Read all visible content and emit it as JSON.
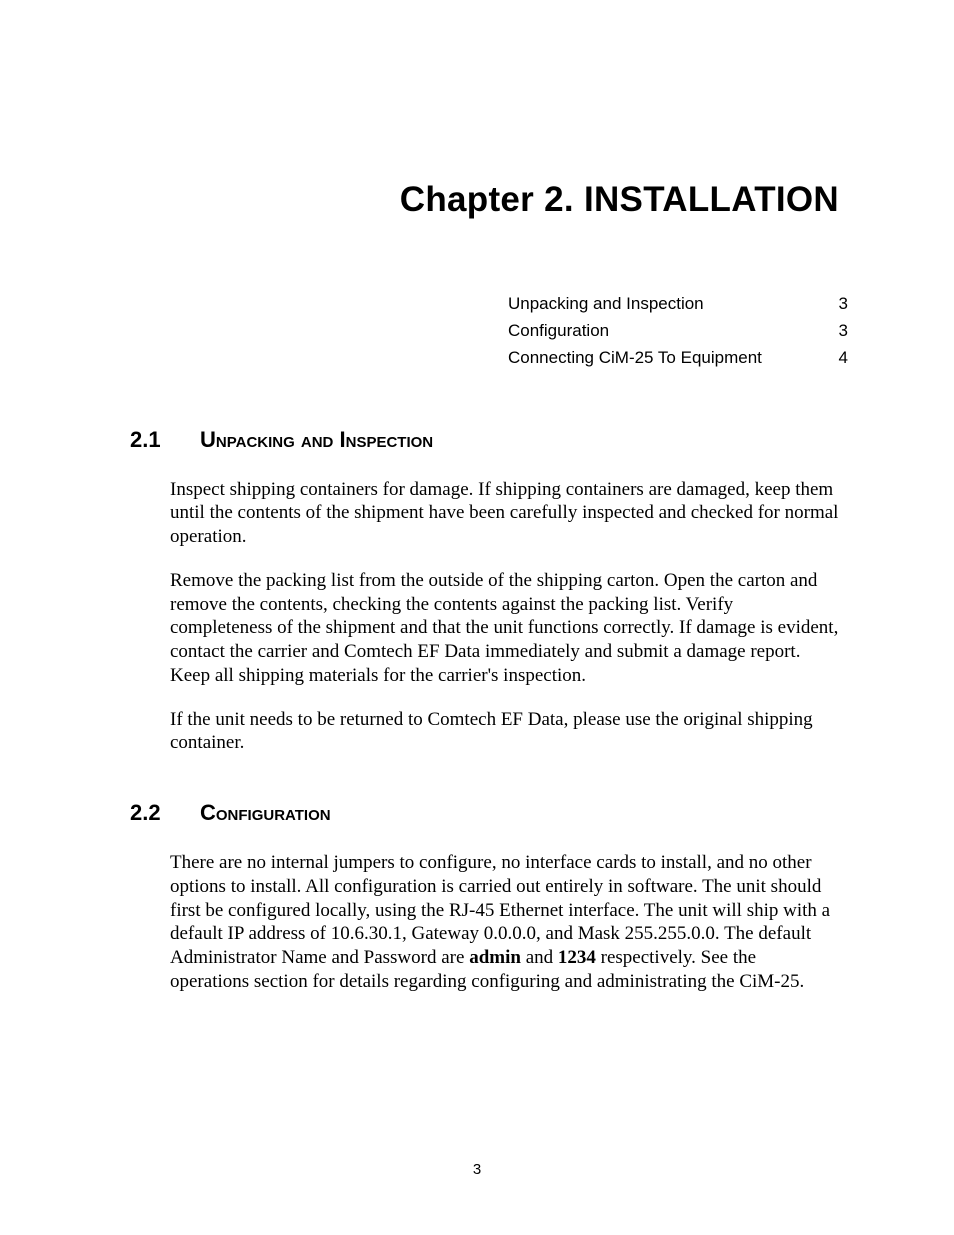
{
  "chapter": {
    "label": "Chapter 2.",
    "title": "INSTALLATION"
  },
  "toc": [
    {
      "label": "Unpacking and Inspection",
      "page": "3"
    },
    {
      "label": "Configuration",
      "page": "3"
    },
    {
      "label": "Connecting CiM-25 To Equipment",
      "page": "4"
    }
  ],
  "sections": [
    {
      "number": "2.1",
      "title": "Unpacking and Inspection",
      "paragraphs": [
        "Inspect shipping containers for damage.  If shipping containers are damaged, keep them until the contents of the shipment have been carefully inspected and checked for normal operation.",
        "Remove the packing list from the outside of the shipping carton. Open the carton and remove the contents, checking the contents against the packing list. Verify completeness of the shipment and that the unit functions correctly. If damage is evident, contact the carrier and Comtech EF Data immediately and submit a damage report. Keep all shipping materials for the carrier's inspection.",
        "If the unit needs to be returned to Comtech EF Data, please use the original shipping container."
      ]
    },
    {
      "number": "2.2",
      "title": "Configuration",
      "paragraphs": [
        "There are no internal jumpers to configure, no interface cards to install, and no other options to install. All configuration is carried out entirely in software. The unit should first be configured locally, using the RJ-45 Ethernet interface. The unit will ship with a default IP address of 10.6.30.1, Gateway 0.0.0.0, and Mask 255.255.0.0.  The default Administrator Name and Password are <b>admin</b> and <b>1234</b> respectively. See the operations section for details regarding configuring and administrating the CiM-25."
      ]
    }
  ],
  "footer": {
    "page_number": "3"
  },
  "style": {
    "background_color": "#ffffff",
    "text_color": "#000000",
    "title_font": "Arial",
    "title_fontsize_pt": 26,
    "toc_font": "Arial",
    "toc_fontsize_pt": 13,
    "heading_font": "Arial",
    "heading_fontsize_pt": 16,
    "body_font": "Times New Roman",
    "body_fontsize_pt": 14
  }
}
